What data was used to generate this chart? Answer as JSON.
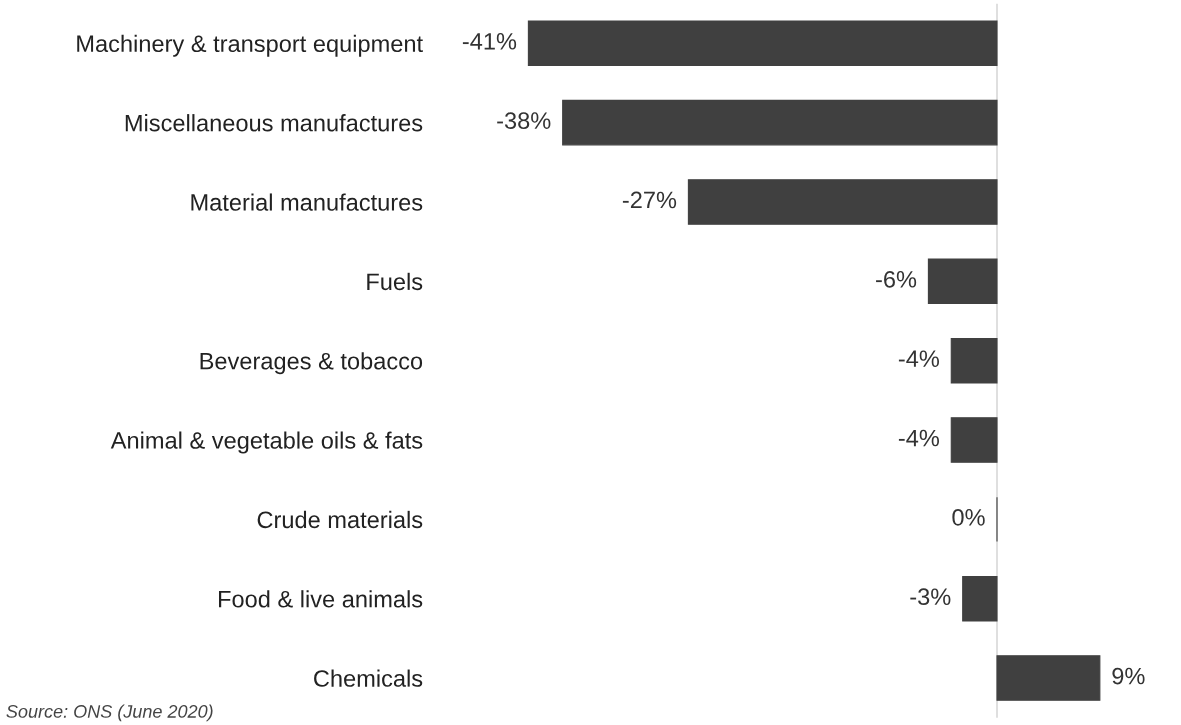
{
  "chart_data": {
    "type": "bar",
    "orientation": "horizontal",
    "categories": [
      "Machinery & transport equipment",
      "Miscellaneous manufactures",
      "Material manufactures",
      "Fuels",
      "Beverages & tobacco",
      "Animal & vegetable oils & fats",
      "Crude materials",
      "Food & live animals",
      "Chemicals"
    ],
    "values": [
      -41,
      -38,
      -27,
      -6,
      -4,
      -4,
      0,
      -3,
      9
    ],
    "value_labels": [
      "-41%",
      "-38%",
      "-27%",
      "-6%",
      "-4%",
      "-4%",
      "0%",
      "-3%",
      "9%"
    ],
    "color": "#404040",
    "grid": false,
    "legend": false,
    "annotations": [
      "Source: ONS (June 2020)"
    ]
  }
}
